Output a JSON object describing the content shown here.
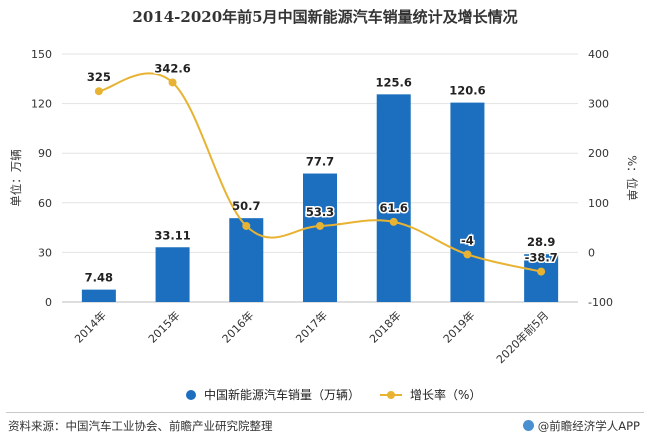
{
  "chart_data": {
    "type": "bar+line",
    "title": "2014-2020年前5月中国新能源汽车销量统计及增长情况",
    "categories": [
      "2014年",
      "2015年",
      "2016年",
      "2017年",
      "2018年",
      "2019年",
      "2020年前5月"
    ],
    "series": [
      {
        "name": "中国新能源汽车销量（万辆）",
        "type": "bar",
        "axis": "left",
        "color": "#1b6fbe",
        "values": [
          7.48,
          33.11,
          50.7,
          77.7,
          125.6,
          120.6,
          28.9
        ],
        "labels": [
          "7.48",
          "33.11",
          "50.7",
          "77.7",
          "125.6",
          "120.6",
          "28.9"
        ]
      },
      {
        "name": "增长率（%）",
        "type": "line",
        "axis": "right",
        "color": "#e8b332",
        "values": [
          325,
          342.6,
          53.3,
          53.3,
          61.6,
          -4,
          -38.7
        ],
        "labels": [
          "325",
          "342.6",
          "53.3",
          "53.3",
          "61.6",
          "-4",
          "-38.7"
        ],
        "visible_labels": [
          true,
          true,
          false,
          true,
          true,
          true,
          true
        ]
      }
    ],
    "ylabel_left": "单位：万辆",
    "ylabel_right": "%：位单",
    "ylim_left": [
      0,
      150
    ],
    "yticks_left": [
      0,
      30,
      60,
      90,
      120,
      150
    ],
    "ylim_right": [
      -100,
      400
    ],
    "yticks_right": [
      -100,
      0,
      100,
      200,
      300,
      400
    ],
    "grid": true,
    "legend": "bottom"
  },
  "footer": {
    "source": "资料来源：中国汽车工业协会、前瞻产业研究院整理",
    "brand": "@前瞻经济学人APP"
  }
}
